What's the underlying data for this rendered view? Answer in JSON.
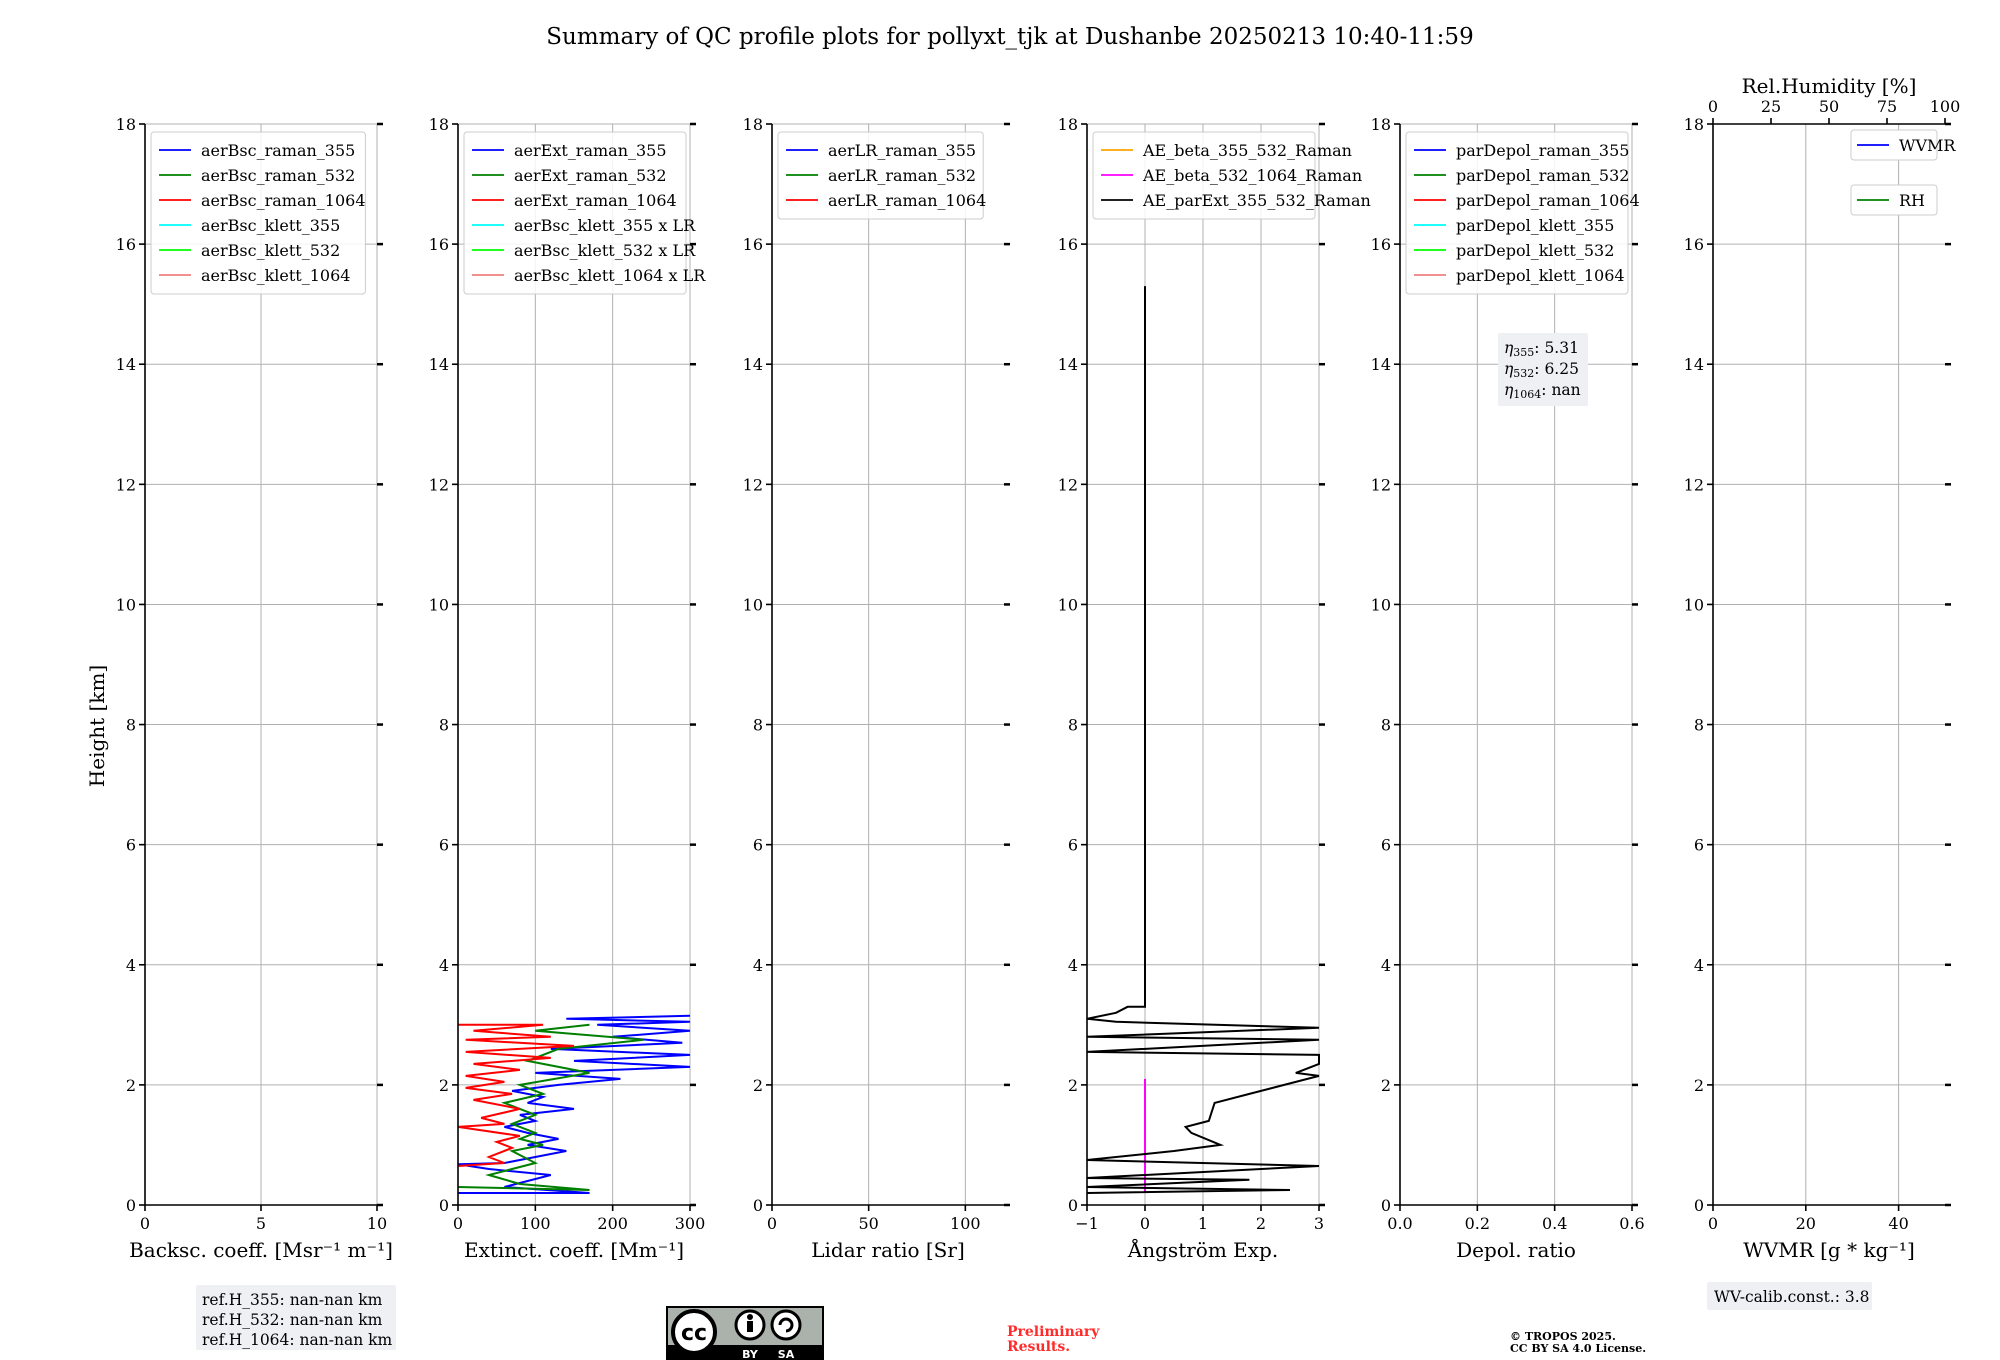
{
  "title": "Summary of QC profile plots for pollyxt_tjk at Dushanbe 20250213 10:40-11:59",
  "ylabel": "Height [km]",
  "yticks": [
    0,
    2,
    4,
    6,
    8,
    10,
    12,
    14,
    16,
    18
  ],
  "chart_data": [
    {
      "type": "line",
      "xlabel": "Backsc. coeff. [Msr⁻¹ m⁻¹]",
      "xlim": [
        0,
        10
      ],
      "ylim": [
        0,
        18
      ],
      "xticks": [
        0,
        5,
        10
      ],
      "xtick_labels": [
        "0",
        "5",
        "10"
      ],
      "grid": true,
      "legend": "top-left",
      "series": [
        {
          "name": "aerBsc_raman_355",
          "color": "#0000ff",
          "points": []
        },
        {
          "name": "aerBsc_raman_532",
          "color": "#008000",
          "points": []
        },
        {
          "name": "aerBsc_raman_1064",
          "color": "#ff0000",
          "points": []
        },
        {
          "name": "aerBsc_klett_355",
          "color": "#00ffff",
          "points": []
        },
        {
          "name": "aerBsc_klett_532",
          "color": "#00ff00",
          "points": []
        },
        {
          "name": "aerBsc_klett_1064",
          "color": "#f08080",
          "points": []
        }
      ]
    },
    {
      "type": "line",
      "xlabel": "Extinct. coeff. [Mm⁻¹]",
      "xlim": [
        0,
        300
      ],
      "ylim": [
        0,
        18
      ],
      "xticks": [
        0,
        100,
        200,
        300
      ],
      "xtick_labels": [
        "0",
        "100",
        "200",
        "300"
      ],
      "grid": true,
      "legend": "top-left",
      "series": [
        {
          "name": "aerExt_raman_355",
          "color": "#0000ff",
          "points": [
            [
              0,
              0.2
            ],
            [
              170,
              0.2
            ],
            [
              60,
              0.3
            ],
            [
              120,
              0.5
            ],
            [
              40,
              0.6
            ],
            [
              0,
              0.68
            ],
            [
              60,
              0.7
            ],
            [
              100,
              0.8
            ],
            [
              140,
              0.9
            ],
            [
              90,
              1.0
            ],
            [
              130,
              1.1
            ],
            [
              90,
              1.2
            ],
            [
              60,
              1.3
            ],
            [
              100,
              1.4
            ],
            [
              80,
              1.5
            ],
            [
              150,
              1.6
            ],
            [
              90,
              1.7
            ],
            [
              110,
              1.8
            ],
            [
              70,
              1.9
            ],
            [
              130,
              2.0
            ],
            [
              210,
              2.1
            ],
            [
              100,
              2.2
            ],
            [
              300,
              2.3
            ],
            [
              150,
              2.4
            ],
            [
              300,
              2.5
            ],
            [
              120,
              2.6
            ],
            [
              290,
              2.7
            ],
            [
              200,
              2.8
            ],
            [
              300,
              2.9
            ],
            [
              180,
              3.0
            ],
            [
              300,
              3.05
            ],
            [
              140,
              3.1
            ],
            [
              300,
              3.15
            ]
          ]
        },
        {
          "name": "aerExt_raman_532",
          "color": "#008000",
          "points": [
            [
              0,
              0.3
            ],
            [
              170,
              0.25
            ],
            [
              80,
              0.35
            ],
            [
              40,
              0.5
            ],
            [
              100,
              0.7
            ],
            [
              70,
              0.9
            ],
            [
              110,
              1.0
            ],
            [
              80,
              1.1
            ],
            [
              100,
              1.2
            ],
            [
              70,
              1.35
            ],
            [
              100,
              1.5
            ],
            [
              60,
              1.7
            ],
            [
              110,
              1.85
            ],
            [
              80,
              2.0
            ],
            [
              170,
              2.2
            ],
            [
              90,
              2.4
            ],
            [
              130,
              2.6
            ],
            [
              240,
              2.75
            ],
            [
              100,
              2.9
            ],
            [
              170,
              3.0
            ]
          ]
        },
        {
          "name": "aerExt_raman_1064",
          "color": "#ff0000",
          "points": [
            [
              0,
              0.65
            ],
            [
              60,
              0.7
            ],
            [
              40,
              0.8
            ],
            [
              70,
              0.95
            ],
            [
              50,
              1.05
            ],
            [
              80,
              1.15
            ],
            [
              0,
              1.3
            ],
            [
              60,
              1.35
            ],
            [
              30,
              1.45
            ],
            [
              80,
              1.6
            ],
            [
              20,
              1.75
            ],
            [
              70,
              1.85
            ],
            [
              10,
              1.95
            ],
            [
              60,
              2.05
            ],
            [
              10,
              2.15
            ],
            [
              80,
              2.25
            ],
            [
              20,
              2.35
            ],
            [
              120,
              2.45
            ],
            [
              10,
              2.55
            ],
            [
              150,
              2.65
            ],
            [
              10,
              2.75
            ],
            [
              120,
              2.8
            ],
            [
              20,
              2.9
            ],
            [
              110,
              3.0
            ],
            [
              0,
              3.0
            ]
          ]
        },
        {
          "name": "aerBsc_klett_355 x LR",
          "color": "#00ffff",
          "points": []
        },
        {
          "name": "aerBsc_klett_532 x LR",
          "color": "#00ff00",
          "points": []
        },
        {
          "name": "aerBsc_klett_1064 x LR",
          "color": "#f08080",
          "points": []
        }
      ]
    },
    {
      "type": "line",
      "xlabel": "Lidar ratio [Sr]",
      "xlim": [
        0,
        120
      ],
      "ylim": [
        0,
        18
      ],
      "xticks": [
        0,
        50,
        100
      ],
      "xtick_labels": [
        "0",
        "50",
        "100"
      ],
      "grid": true,
      "legend": "top-left",
      "series": [
        {
          "name": "aerLR_raman_355",
          "color": "#0000ff",
          "points": []
        },
        {
          "name": "aerLR_raman_532",
          "color": "#008000",
          "points": []
        },
        {
          "name": "aerLR_raman_1064",
          "color": "#ff0000",
          "points": []
        }
      ]
    },
    {
      "type": "line",
      "xlabel": "Ångström Exp.",
      "xlim": [
        -1,
        3
      ],
      "ylim": [
        0,
        18
      ],
      "xticks": [
        -1,
        0,
        1,
        2,
        3
      ],
      "xtick_labels": [
        "−1",
        "0",
        "1",
        "2",
        "3"
      ],
      "grid": true,
      "legend": "top-left",
      "series": [
        {
          "name": "AE_beta_355_532_Raman",
          "color": "#ffa500",
          "points": []
        },
        {
          "name": "AE_beta_532_1064_Raman",
          "color": "#ff00ff",
          "points": [
            [
              0,
              0.2
            ],
            [
              0,
              2.1
            ]
          ]
        },
        {
          "name": "AE_parExt_355_532_Raman",
          "color": "#000000",
          "points": [
            [
              0,
              15.3
            ],
            [
              0,
              3.3
            ],
            [
              -0.3,
              3.3
            ],
            [
              -0.5,
              3.2
            ],
            [
              -1,
              3.1
            ],
            [
              -0.5,
              3.05
            ],
            [
              3,
              2.95
            ],
            [
              -1,
              2.8
            ],
            [
              3,
              2.75
            ],
            [
              -1,
              2.55
            ],
            [
              3,
              2.5
            ],
            [
              3,
              2.35
            ],
            [
              2.6,
              2.2
            ],
            [
              3,
              2.15
            ],
            [
              2.4,
              2.0
            ],
            [
              1.8,
              1.85
            ],
            [
              1.2,
              1.7
            ],
            [
              1.1,
              1.4
            ],
            [
              0.7,
              1.3
            ],
            [
              0.8,
              1.2
            ],
            [
              1.3,
              1.0
            ],
            [
              0.5,
              0.9
            ],
            [
              -1,
              0.75
            ],
            [
              3,
              0.65
            ],
            [
              -1,
              0.45
            ],
            [
              1.8,
              0.42
            ],
            [
              -1,
              0.3
            ],
            [
              2.5,
              0.25
            ],
            [
              -1,
              0.2
            ]
          ]
        }
      ],
      "annotations": []
    },
    {
      "type": "line",
      "xlabel": "Depol. ratio",
      "xlim": [
        0,
        0.6
      ],
      "ylim": [
        0,
        18
      ],
      "xticks": [
        0,
        0.2,
        0.4,
        0.6
      ],
      "xtick_labels": [
        "0.0",
        "0.2",
        "0.4",
        "0.6"
      ],
      "grid": true,
      "legend": "top-left",
      "series": [
        {
          "name": "parDepol_raman_355",
          "color": "#0000ff",
          "points": []
        },
        {
          "name": "parDepol_raman_532",
          "color": "#008000",
          "points": []
        },
        {
          "name": "parDepol_raman_1064",
          "color": "#ff0000",
          "points": []
        },
        {
          "name": "parDepol_klett_355",
          "color": "#00ffff",
          "points": []
        },
        {
          "name": "parDepol_klett_532",
          "color": "#00ff00",
          "points": []
        },
        {
          "name": "parDepol_klett_1064",
          "color": "#f08080",
          "points": []
        }
      ],
      "annotation_eta": [
        {
          "sym": "η",
          "sub": "355",
          "text": ": 5.31"
        },
        {
          "sym": "η",
          "sub": "532",
          "text": ": 6.25"
        },
        {
          "sym": "η",
          "sub": "1064",
          "text": ": nan"
        }
      ]
    },
    {
      "type": "line",
      "xlabel": "WVMR [g * kg⁻¹]",
      "xlim": [
        0,
        50
      ],
      "ylim": [
        0,
        18
      ],
      "xticks": [
        0,
        20,
        40
      ],
      "xtick_labels": [
        "0",
        "20",
        "40"
      ],
      "x2label": "Rel.Humidity [%]",
      "x2lim": [
        0,
        100
      ],
      "x2ticks": [
        0,
        25,
        50,
        75,
        100
      ],
      "x2tick_labels": [
        "0",
        "25",
        "50",
        "75",
        "100"
      ],
      "grid": true,
      "legend": "top-right",
      "series": [
        {
          "name": "WVMR",
          "color": "#0000ff",
          "points": []
        },
        {
          "name": "RH",
          "color": "#008000",
          "points": []
        }
      ]
    }
  ],
  "ref_heights": [
    "ref.H_355: nan-nan km",
    "ref.H_532: nan-nan km",
    "ref.H_1064: nan-nan km"
  ],
  "wv_calib": "WV-calib.const.: 3.8",
  "preliminary": [
    "Preliminary",
    "Results."
  ],
  "copyright": [
    "© TROPOS 2025.",
    "CC BY SA 4.0 License."
  ],
  "license_badge": {
    "main": "cc",
    "by": "BY",
    "sa": "SA",
    "icon": "cc-by-sa-icon"
  },
  "colors": {
    "accent_red": "#ff2a2a",
    "box_bg": "#eef0f4"
  }
}
